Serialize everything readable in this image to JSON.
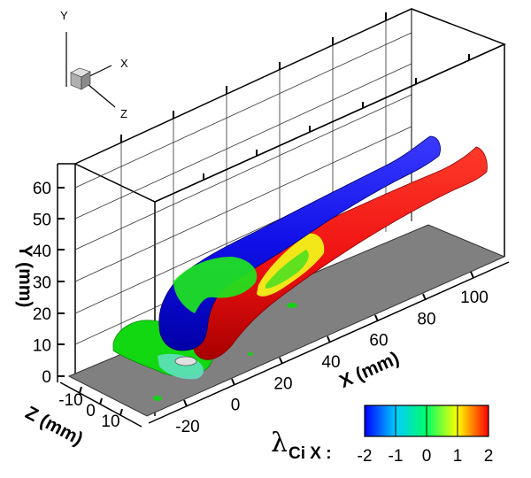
{
  "chart_data": {
    "type": "3d-isosurface",
    "triad": {
      "x": "X",
      "y": "Y",
      "z": "Z"
    },
    "axes": {
      "x": {
        "label": "X (mm)",
        "ticks": [
          "-20",
          "0",
          "20",
          "40",
          "60",
          "80",
          "100"
        ],
        "range": [
          -30,
          105
        ]
      },
      "y": {
        "label": "Y (mm)",
        "ticks": [
          "0",
          "10",
          "20",
          "30",
          "40",
          "50",
          "60"
        ],
        "range": [
          -2,
          62
        ]
      },
      "z": {
        "label": "Z (mm)",
        "ticks": [
          "-10",
          "0",
          "10"
        ],
        "range": [
          -15,
          15
        ]
      }
    },
    "colorbar": {
      "title": "λ",
      "subscript": "Ci X :",
      "ticks": [
        "-2",
        "-1",
        "0",
        "1",
        "2"
      ],
      "range": [
        -2,
        2
      ],
      "colors": [
        "#0000ff",
        "#00c8ff",
        "#00ff60",
        "#ffff00",
        "#ff0000"
      ]
    },
    "grid": true,
    "surface_colors": {
      "floor": "#808080",
      "negative": "#1010f0",
      "positive": "#ee1010",
      "near_zero": "#10e010"
    }
  }
}
